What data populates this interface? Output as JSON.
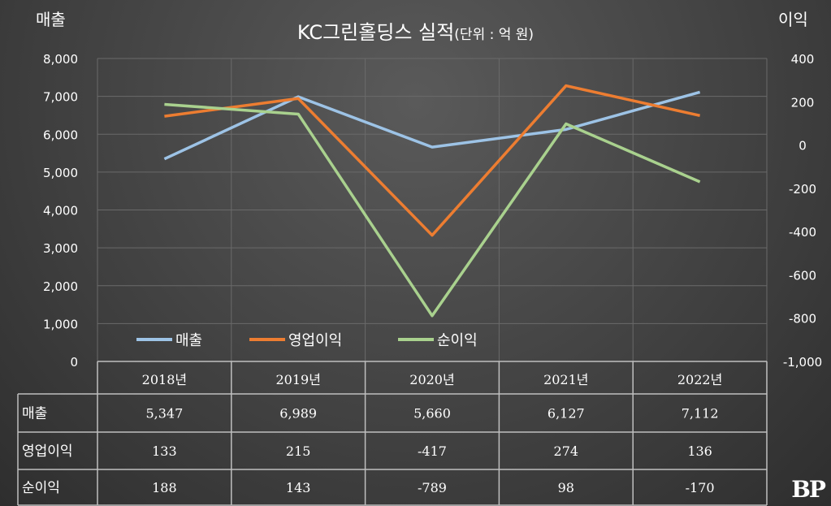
{
  "chart_data": {
    "type": "line",
    "title": "KC그린홀딩스 실적",
    "subtitle": "(단위 : 억 원)",
    "ylabel": "매출",
    "y2label": "이익",
    "categories": [
      "2018년",
      "2019년",
      "2020년",
      "2021년",
      "2022년"
    ],
    "ylim": [
      0,
      8000
    ],
    "y2lim": [
      -1000,
      400
    ],
    "yticks": [
      "0",
      "1,000",
      "2,000",
      "3,000",
      "4,000",
      "5,000",
      "6,000",
      "7,000",
      "8,000"
    ],
    "y2ticks": [
      "-1,000",
      "-800",
      "-600",
      "-400",
      "-200",
      "0",
      "200",
      "400"
    ],
    "legend_position": "bottom-left inside plot",
    "grid": true,
    "series": [
      {
        "name": "매출",
        "axis": "left",
        "color": "#9dc3e6",
        "values": [
          5347,
          6989,
          5660,
          6127,
          7112
        ],
        "labels": [
          "5,347",
          "6,989",
          "5,660",
          "6,127",
          "7,112"
        ]
      },
      {
        "name": "영업이익",
        "axis": "right",
        "color": "#ed7d31",
        "values": [
          133,
          215,
          -417,
          274,
          136
        ],
        "labels": [
          "133",
          "215",
          "-417",
          "274",
          "136"
        ]
      },
      {
        "name": "순이익",
        "axis": "right",
        "color": "#a9d18e",
        "values": [
          188,
          143,
          -789,
          98,
          -170
        ],
        "labels": [
          "188",
          "143",
          "-789",
          "98",
          "-170"
        ]
      }
    ]
  },
  "logo": "BP"
}
